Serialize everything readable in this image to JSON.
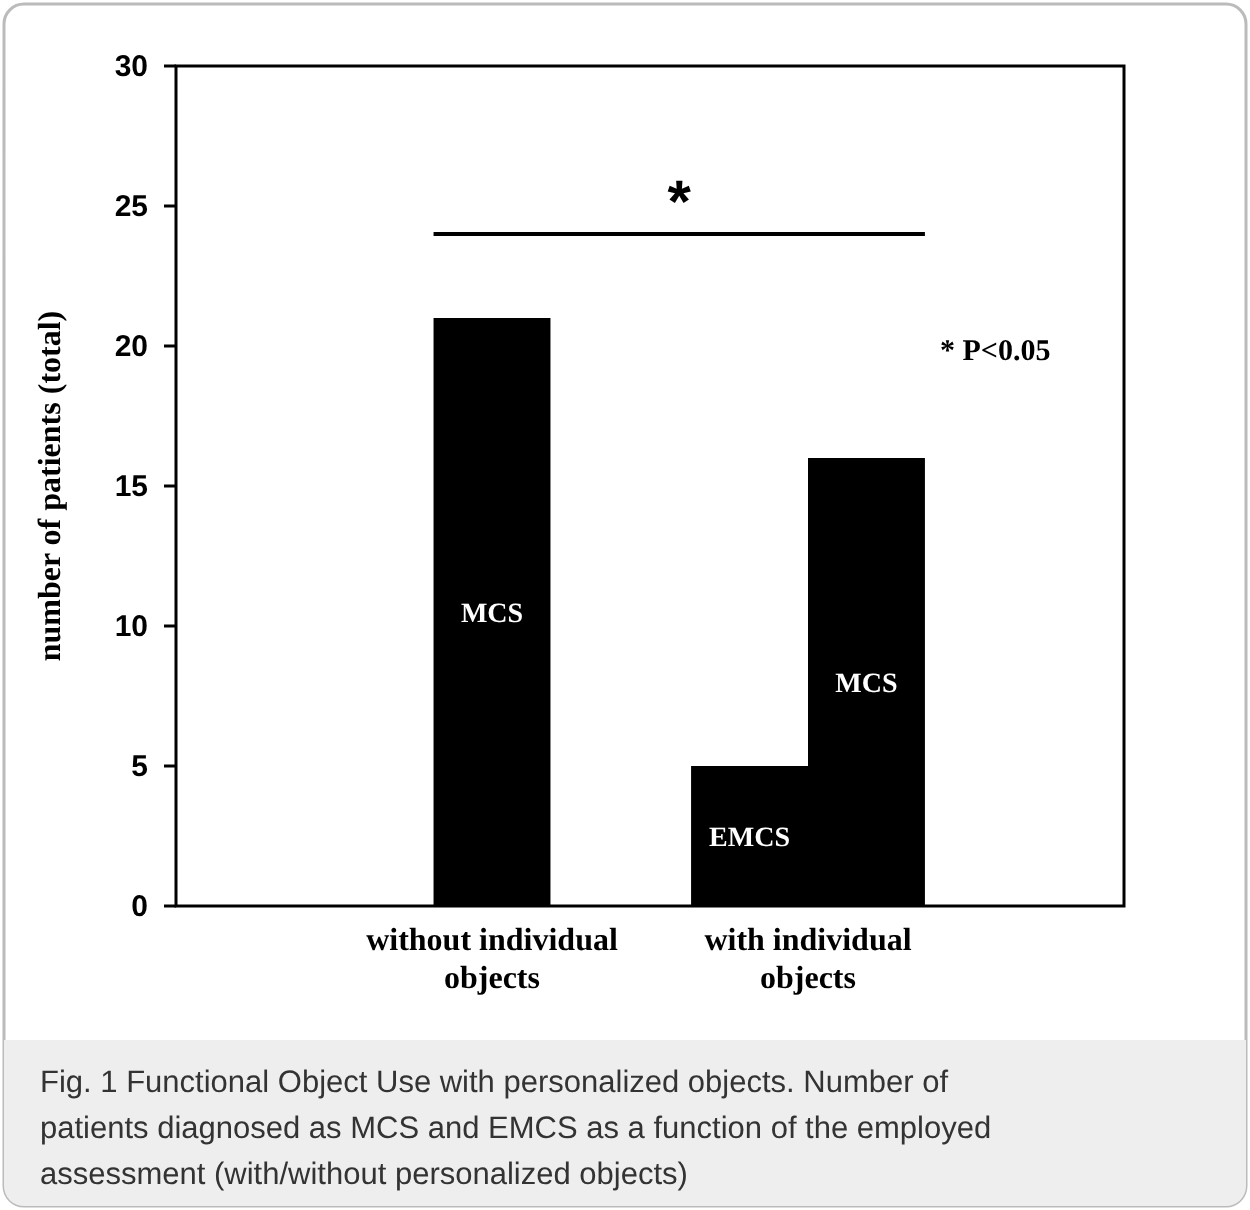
{
  "chart_data": {
    "type": "bar",
    "ylabel": "number of patients (total)",
    "categories": [
      "without individual objects",
      "with individual objects"
    ],
    "series": [
      {
        "name": "EMCS",
        "color": "#000000",
        "values": [
          null,
          5
        ]
      },
      {
        "name": "MCS",
        "color": "#000000",
        "values": [
          21,
          16
        ]
      }
    ],
    "ylim": [
      0,
      30
    ],
    "yticks": [
      0,
      5,
      10,
      15,
      20,
      25,
      30
    ],
    "grid": false,
    "annotations": [
      "*",
      "* P<0.05",
      "Fig. 1 Functional Object Use with personalized objects. Number of patients diagnosed as MCS and EMCS as a function of the employed assessment (with/without personalized objects)"
    ]
  }
}
